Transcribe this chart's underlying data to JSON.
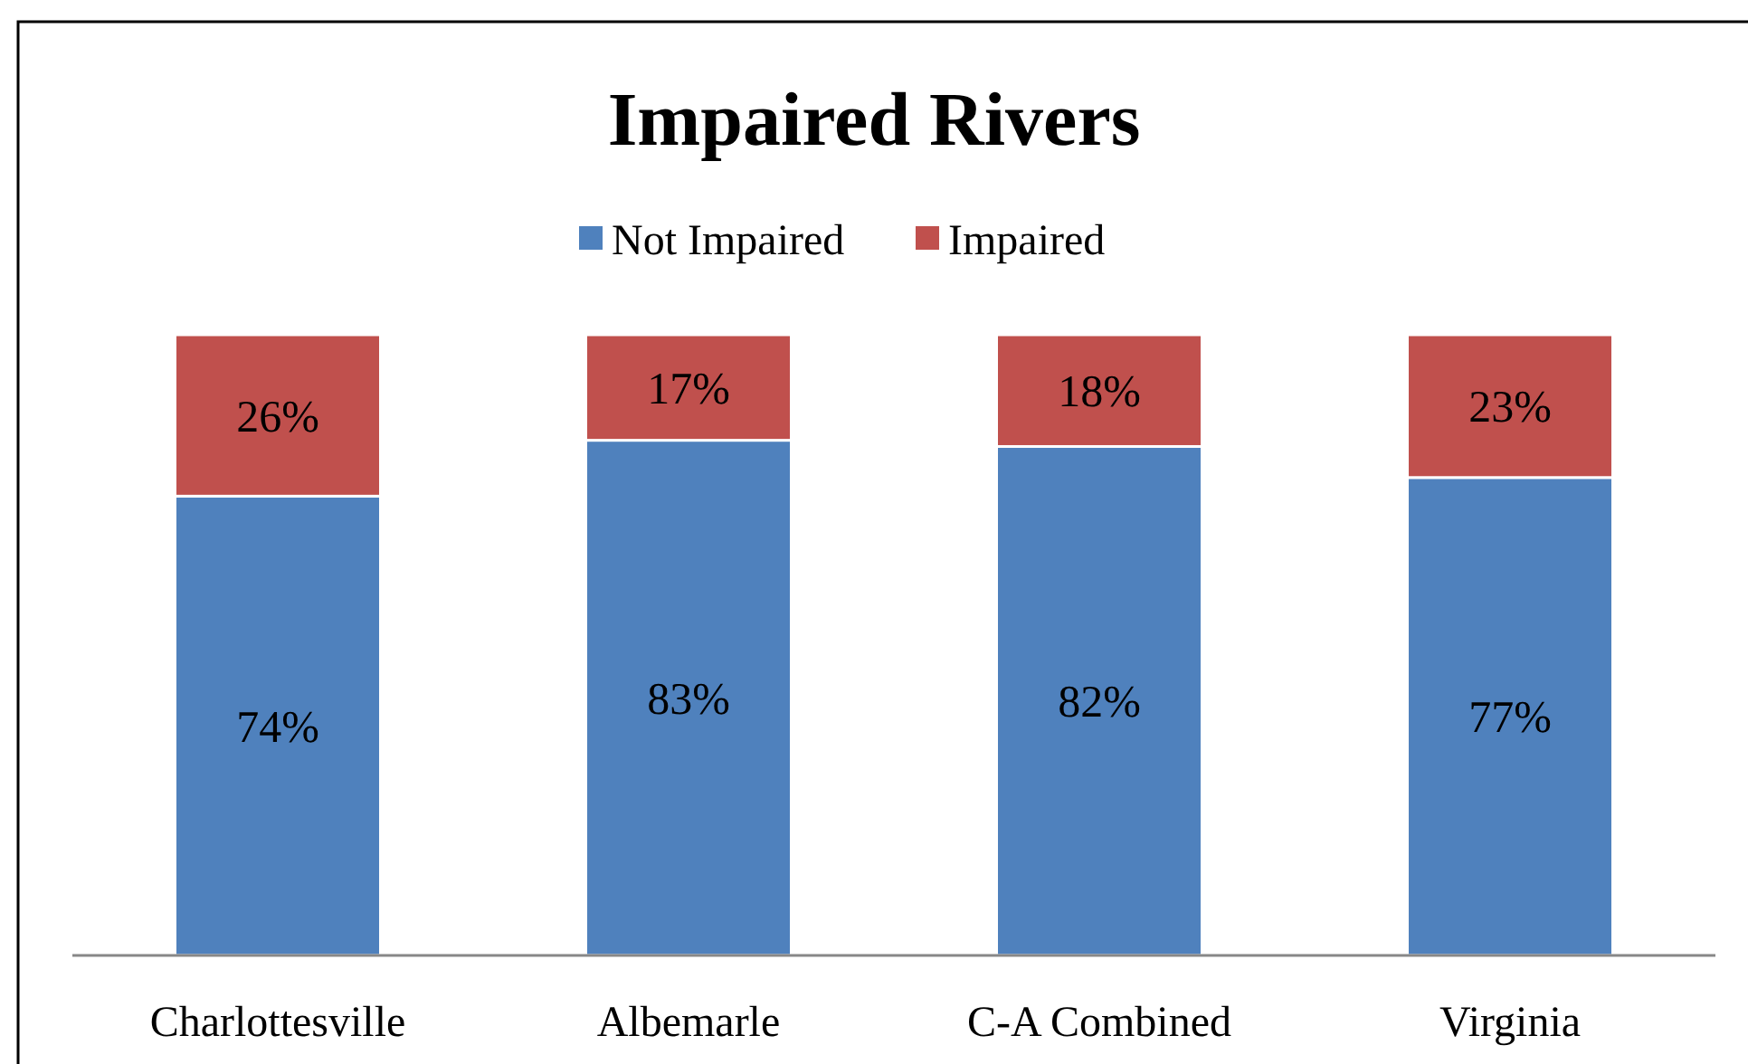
{
  "chart_data": {
    "type": "bar",
    "title": "Impaired Rivers",
    "categories": [
      "Charlottesville",
      "Albemarle",
      "C-A Combined",
      "Virginia"
    ],
    "series": [
      {
        "name": "Not Impaired",
        "color": "#4f81bd",
        "values": [
          74,
          83,
          82,
          77
        ],
        "value_labels": [
          "74%",
          "83%",
          "82%",
          "77%"
        ]
      },
      {
        "name": "Impaired",
        "color": "#c0504d",
        "values": [
          26,
          17,
          18,
          23
        ],
        "value_labels": [
          "26%",
          "17%",
          "18%",
          "23%"
        ]
      }
    ],
    "stacked": true,
    "legend": "top",
    "tick_labels": "x"
  }
}
